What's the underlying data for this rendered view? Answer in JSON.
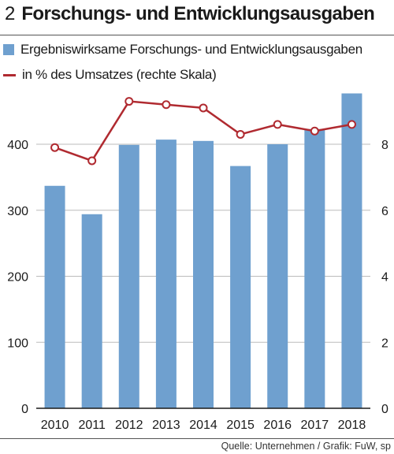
{
  "header": {
    "number": "2",
    "title": "Forschungs- und Entwicklungsausgaben"
  },
  "legend": {
    "bars_label": "Ergebniswirksame Forschungs- und Entwicklungsausgaben",
    "line_label": "in % des Umsatzes (rechte Skala)"
  },
  "source": "Quelle: Unternehmen / Grafik: FuW, sp",
  "colors": {
    "bar": "#6fa0cf",
    "line": "#b02a30",
    "grid": "#bbbbbb"
  },
  "chart_data": {
    "type": "bar",
    "categories": [
      "2010",
      "2011",
      "2012",
      "2013",
      "2014",
      "2015",
      "2016",
      "2017",
      "2018"
    ],
    "series": [
      {
        "name": "Ergebniswirksame Forschungs- und Entwicklungsausgaben",
        "type": "bar",
        "axis": "left",
        "values": [
          337,
          294,
          399,
          407,
          405,
          367,
          400,
          423,
          477
        ]
      },
      {
        "name": "in % des Umsatzes (rechte Skala)",
        "type": "line",
        "axis": "right",
        "values": [
          7.9,
          7.5,
          9.3,
          9.2,
          9.1,
          8.3,
          8.6,
          8.4,
          8.6
        ]
      }
    ],
    "y_left": {
      "ticks": [
        "0",
        "100",
        "200",
        "300",
        "400"
      ],
      "lim": [
        0,
        480
      ]
    },
    "y_right": {
      "ticks": [
        "0",
        "2",
        "4",
        "6",
        "8"
      ],
      "lim": [
        0,
        9.6
      ]
    },
    "grid": true,
    "legend_position": "top-left"
  }
}
